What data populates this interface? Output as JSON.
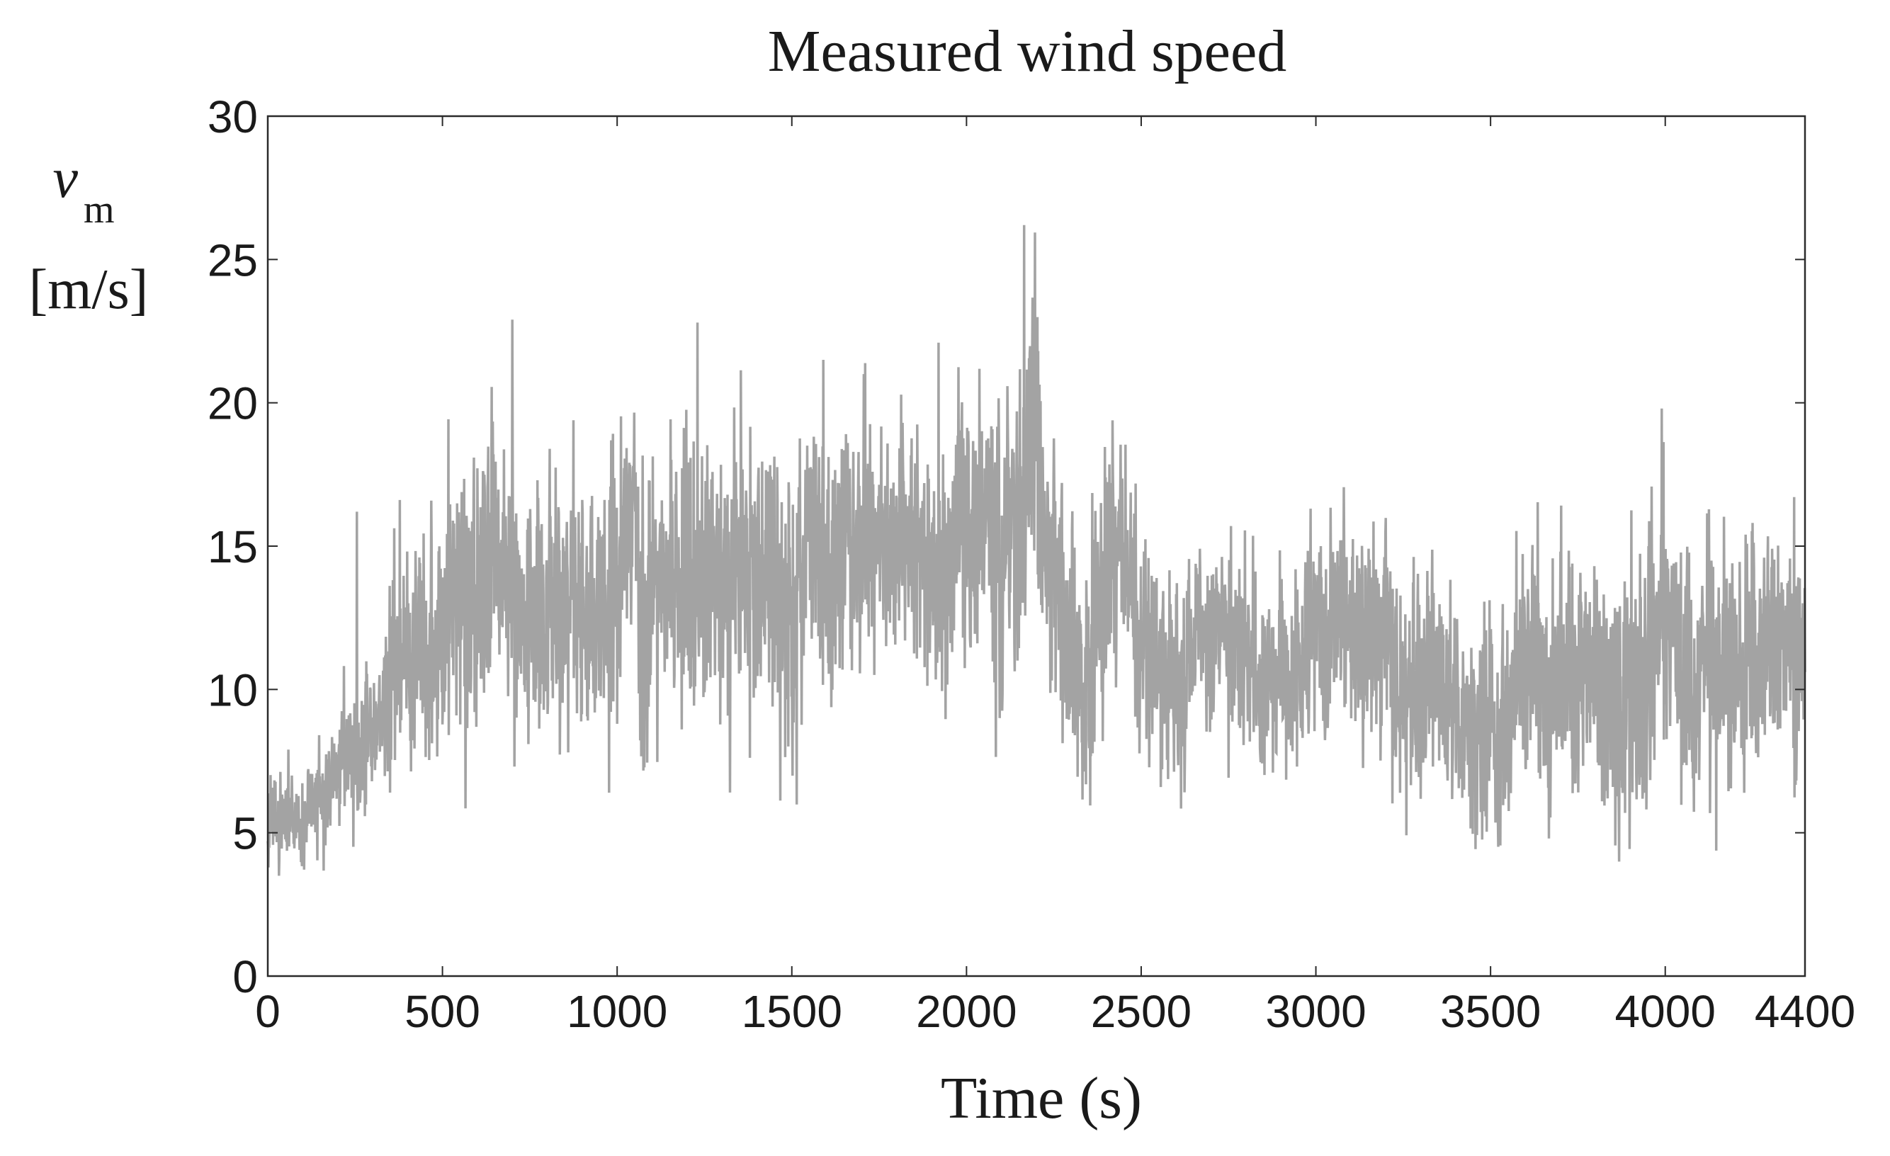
{
  "chart_data": {
    "type": "line",
    "title": "Measured wind speed",
    "xlabel": "Time (s)",
    "ylabel": {
      "symbol": "v",
      "subscript": "m",
      "unit": "[m/s]"
    },
    "xlim": [
      0,
      4400
    ],
    "ylim": [
      0,
      30
    ],
    "xticks": [
      0,
      500,
      1000,
      1500,
      2000,
      2500,
      3000,
      3500,
      4000,
      4400
    ],
    "yticks": [
      0,
      5,
      10,
      15,
      20,
      25,
      30
    ],
    "grid": false,
    "legend": "none",
    "series": [
      {
        "color": "#a3a3a3",
        "envelope": {
          "x": [
            0,
            50,
            100,
            150,
            200,
            250,
            300,
            350,
            400,
            450,
            500,
            550,
            600,
            700,
            800,
            900,
            1000,
            1100,
            1200,
            1300,
            1400,
            1500,
            1600,
            1700,
            1800,
            1900,
            2000,
            2100,
            2150,
            2200,
            2250,
            2300,
            2400,
            2500,
            2600,
            2700,
            2800,
            2900,
            3000,
            3100,
            3200,
            3300,
            3400,
            3500,
            3600,
            3700,
            3800,
            3900,
            4000,
            4100,
            4200,
            4300,
            4400
          ],
          "mean": [
            5.5,
            5.2,
            5.0,
            6.0,
            7.5,
            8.5,
            9.5,
            11.5,
            12.5,
            13.0,
            13.5,
            14.0,
            14.0,
            13.8,
            13.5,
            13.5,
            13.0,
            14.0,
            14.2,
            14.5,
            14.0,
            15.0,
            15.0,
            14.5,
            14.5,
            14.0,
            14.0,
            15.0,
            16.0,
            16.5,
            15.0,
            14.0,
            13.0,
            12.5,
            11.5,
            11.0,
            10.5,
            10.5,
            11.0,
            11.0,
            11.0,
            10.8,
            10.5,
            10.0,
            10.2,
            10.8,
            11.5,
            11.0,
            11.5,
            11.0,
            10.5,
            10.5,
            11.0
          ],
          "amp": [
            1.2,
            1.1,
            1.0,
            1.2,
            1.4,
            1.6,
            1.8,
            2.2,
            2.5,
            2.8,
            2.8,
            3.0,
            3.0,
            3.0,
            2.8,
            2.8,
            3.0,
            3.0,
            3.0,
            3.0,
            3.0,
            3.0,
            3.0,
            3.0,
            3.0,
            3.0,
            3.0,
            3.2,
            3.5,
            3.5,
            3.0,
            2.8,
            2.6,
            2.5,
            2.3,
            2.2,
            2.2,
            2.2,
            2.3,
            2.3,
            2.3,
            2.3,
            2.3,
            2.4,
            2.5,
            2.6,
            2.8,
            2.8,
            2.8,
            2.7,
            2.6,
            2.5,
            2.5
          ]
        },
        "peaks": [
          {
            "x": 32,
            "y": 3.5
          },
          {
            "x": 255,
            "y": 16.2
          },
          {
            "x": 350,
            "y": 6.4
          },
          {
            "x": 700,
            "y": 22.9
          },
          {
            "x": 780,
            "y": 9.5
          },
          {
            "x": 1000,
            "y": 8.8
          },
          {
            "x": 1230,
            "y": 22.8
          },
          {
            "x": 1590,
            "y": 21.5
          },
          {
            "x": 1920,
            "y": 22.1
          },
          {
            "x": 2095,
            "y": 9.0
          },
          {
            "x": 2165,
            "y": 26.2
          },
          {
            "x": 2390,
            "y": 8.2
          },
          {
            "x": 3515,
            "y": 5.8
          },
          {
            "x": 3990,
            "y": 19.8
          }
        ]
      }
    ]
  }
}
